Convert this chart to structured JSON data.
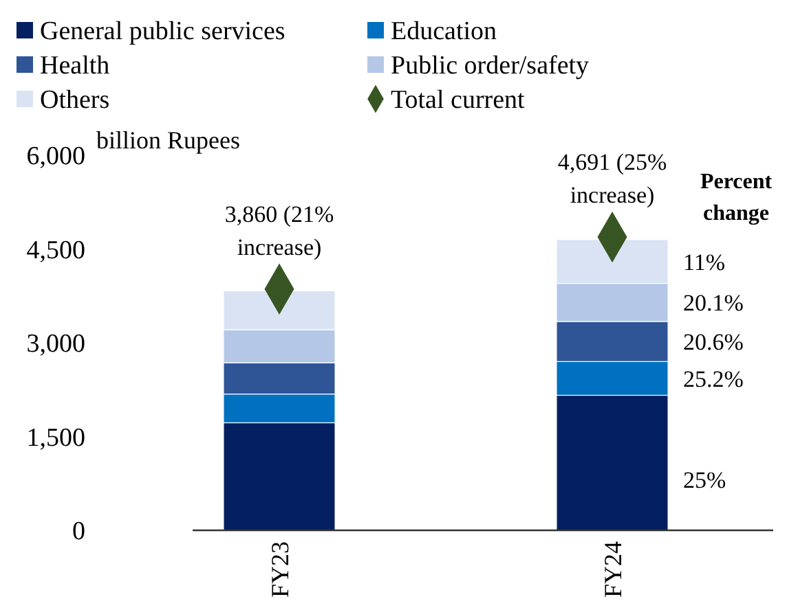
{
  "chart_data": {
    "type": "bar",
    "stacked": true,
    "categories": [
      "FY23",
      "FY24"
    ],
    "ylabel": "billion Rupees",
    "ylim": [
      0,
      6000
    ],
    "yticks": [
      0,
      {
        "value": 1500,
        "label": "1,500"
      },
      {
        "value": 3000,
        "label": "3,000"
      },
      {
        "value": 4500,
        "label": "4,500"
      },
      {
        "value": 6000,
        "label": "6,000"
      }
    ],
    "grid": false,
    "legend": "top",
    "series": [
      {
        "name": "General public services",
        "color": "#042060",
        "values": [
          1720,
          2160
        ]
      },
      {
        "name": "Education",
        "color": "#0070c0",
        "values": [
          460,
          540
        ]
      },
      {
        "name": "Health",
        "color": "#2f5597",
        "values": [
          500,
          640
        ]
      },
      {
        "name": "Public order/safety",
        "color": "#b4c7e7",
        "values": [
          530,
          610
        ]
      },
      {
        "name": "Others",
        "color": "#dae3f3",
        "values": [
          620,
          700
        ]
      },
      {
        "name": "Total current",
        "type": "scatter",
        "marker": "diamond",
        "color": "#375623",
        "x": [
          "FY23",
          "FY24"
        ],
        "values": [
          3860,
          4691
        ]
      }
    ],
    "annotations": [
      {
        "text": "3,860 (21% increase)",
        "x": "FY23",
        "y": 3860
      },
      {
        "text": "4,691 (25% increase)",
        "x": "FY24",
        "y": 4691
      },
      "Percent change",
      "25%",
      "25.2%",
      "20.6%",
      "20.1%",
      "11%"
    ]
  }
}
